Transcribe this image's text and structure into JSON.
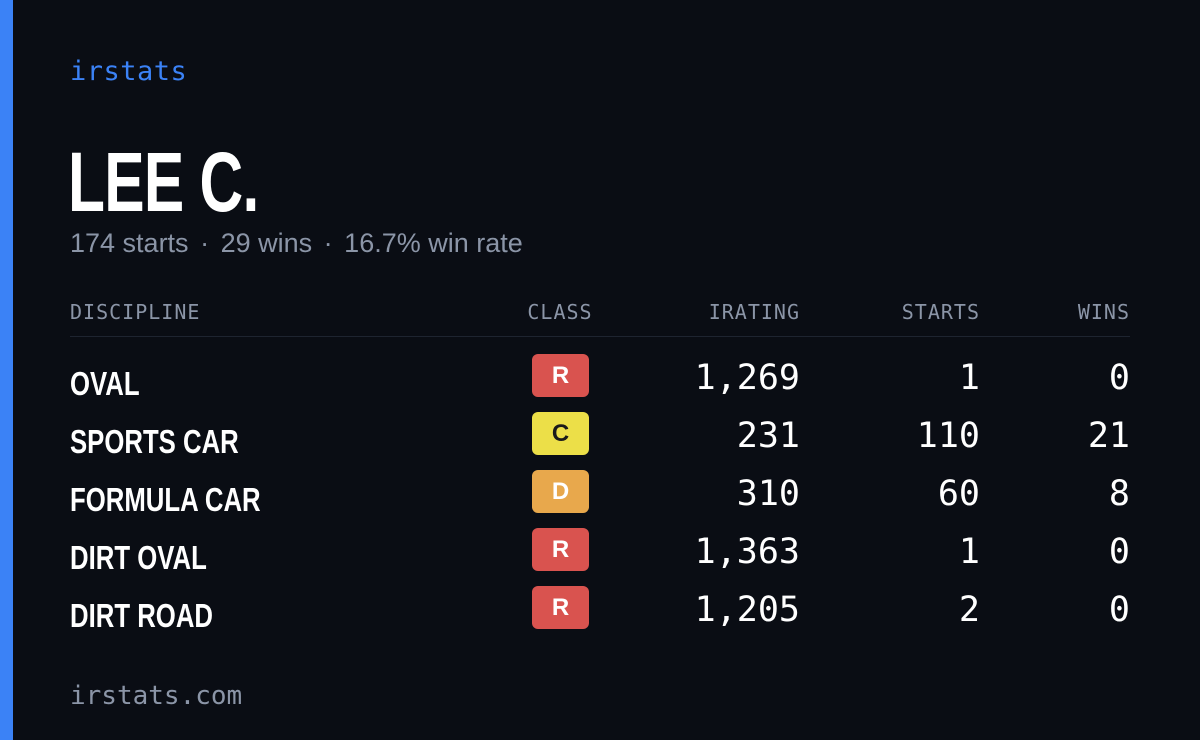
{
  "brand": "irstats",
  "driver": {
    "name": "LEE C.",
    "starts_text": "174 starts",
    "wins_text": "29 wins",
    "win_rate_text": "16.7% win rate",
    "separator": "·"
  },
  "table": {
    "headers": {
      "discipline": "DISCIPLINE",
      "class": "CLASS",
      "irating": "IRATING",
      "starts": "STARTS",
      "wins": "WINS"
    },
    "rows": [
      {
        "discipline": "OVAL",
        "class": "R",
        "irating": "1,269",
        "starts": "1",
        "wins": "0"
      },
      {
        "discipline": "SPORTS CAR",
        "class": "C",
        "irating": "231",
        "starts": "110",
        "wins": "21"
      },
      {
        "discipline": "FORMULA CAR",
        "class": "D",
        "irating": "310",
        "starts": "60",
        "wins": "8"
      },
      {
        "discipline": "DIRT OVAL",
        "class": "R",
        "irating": "1,363",
        "starts": "1",
        "wins": "0"
      },
      {
        "discipline": "DIRT ROAD",
        "class": "R",
        "irating": "1,205",
        "starts": "2",
        "wins": "0"
      }
    ]
  },
  "class_colors": {
    "R": {
      "bg": "#d9534f",
      "fg": "#ffffff"
    },
    "C": {
      "bg": "#ecdf48",
      "fg": "#1a1a1a"
    },
    "D": {
      "bg": "#e8a84c",
      "fg": "#ffffff"
    }
  },
  "colors": {
    "accent": "#3b82f6",
    "background": "#0a0d14",
    "muted_text": "#8b95a7"
  },
  "footer": "irstats.com"
}
